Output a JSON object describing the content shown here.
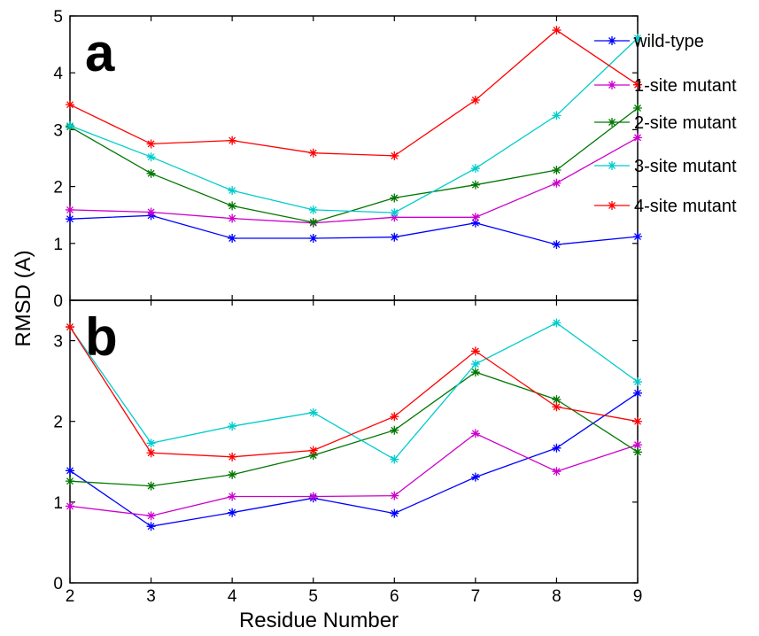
{
  "chart_data": {
    "type": "line",
    "xlabel": "Residue Number",
    "ylabel": "RMSD (A)",
    "x": [
      2,
      3,
      4,
      5,
      6,
      7,
      8,
      9
    ],
    "legend": {
      "placement": "right",
      "entries": [
        "wild-type",
        "1-site mutant",
        "2-site mutant",
        "3-site mutant",
        "4-site mutant"
      ]
    },
    "colors": [
      "#0000ff",
      "#cc00cc",
      "#007700",
      "#00cccc",
      "#ff0000"
    ],
    "panels": [
      {
        "label": "a",
        "ylim": [
          0,
          5
        ],
        "yticks": [
          0,
          1,
          2,
          3,
          4,
          5
        ],
        "series": [
          {
            "name": "wild-type",
            "values": [
              1.43,
              1.49,
              1.09,
              1.09,
              1.11,
              1.36,
              0.98,
              1.12
            ]
          },
          {
            "name": "1-site mutant",
            "values": [
              1.59,
              1.55,
              1.44,
              1.36,
              1.46,
              1.46,
              2.06,
              2.86
            ]
          },
          {
            "name": "2-site mutant",
            "values": [
              3.05,
              2.23,
              1.66,
              1.37,
              1.8,
              2.03,
              2.29,
              3.38
            ]
          },
          {
            "name": "3-site mutant",
            "values": [
              3.07,
              2.52,
              1.93,
              1.59,
              1.54,
              2.32,
              3.25,
              4.61
            ]
          },
          {
            "name": "4-site mutant",
            "values": [
              3.44,
              2.75,
              2.81,
              2.59,
              2.54,
              3.52,
              4.75,
              3.79
            ]
          }
        ]
      },
      {
        "label": "b",
        "ylim": [
          0,
          3.5
        ],
        "yticks": [
          0,
          1,
          2,
          3
        ],
        "series": [
          {
            "name": "wild-type",
            "values": [
              1.39,
              0.7,
              0.87,
              1.05,
              0.86,
              1.31,
              1.67,
              2.35
            ]
          },
          {
            "name": "1-site mutant",
            "values": [
              0.95,
              0.83,
              1.07,
              1.07,
              1.08,
              1.85,
              1.38,
              1.71
            ]
          },
          {
            "name": "2-site mutant",
            "values": [
              1.26,
              1.2,
              1.34,
              1.58,
              1.89,
              2.61,
              2.27,
              1.62
            ]
          },
          {
            "name": "3-site mutant",
            "values": [
              3.17,
              1.73,
              1.94,
              2.11,
              1.53,
              2.71,
              3.22,
              2.49
            ]
          },
          {
            "name": "4-site mutant",
            "values": [
              3.17,
              1.61,
              1.56,
              1.64,
              2.06,
              2.87,
              2.18,
              2.0
            ]
          }
        ]
      }
    ]
  }
}
